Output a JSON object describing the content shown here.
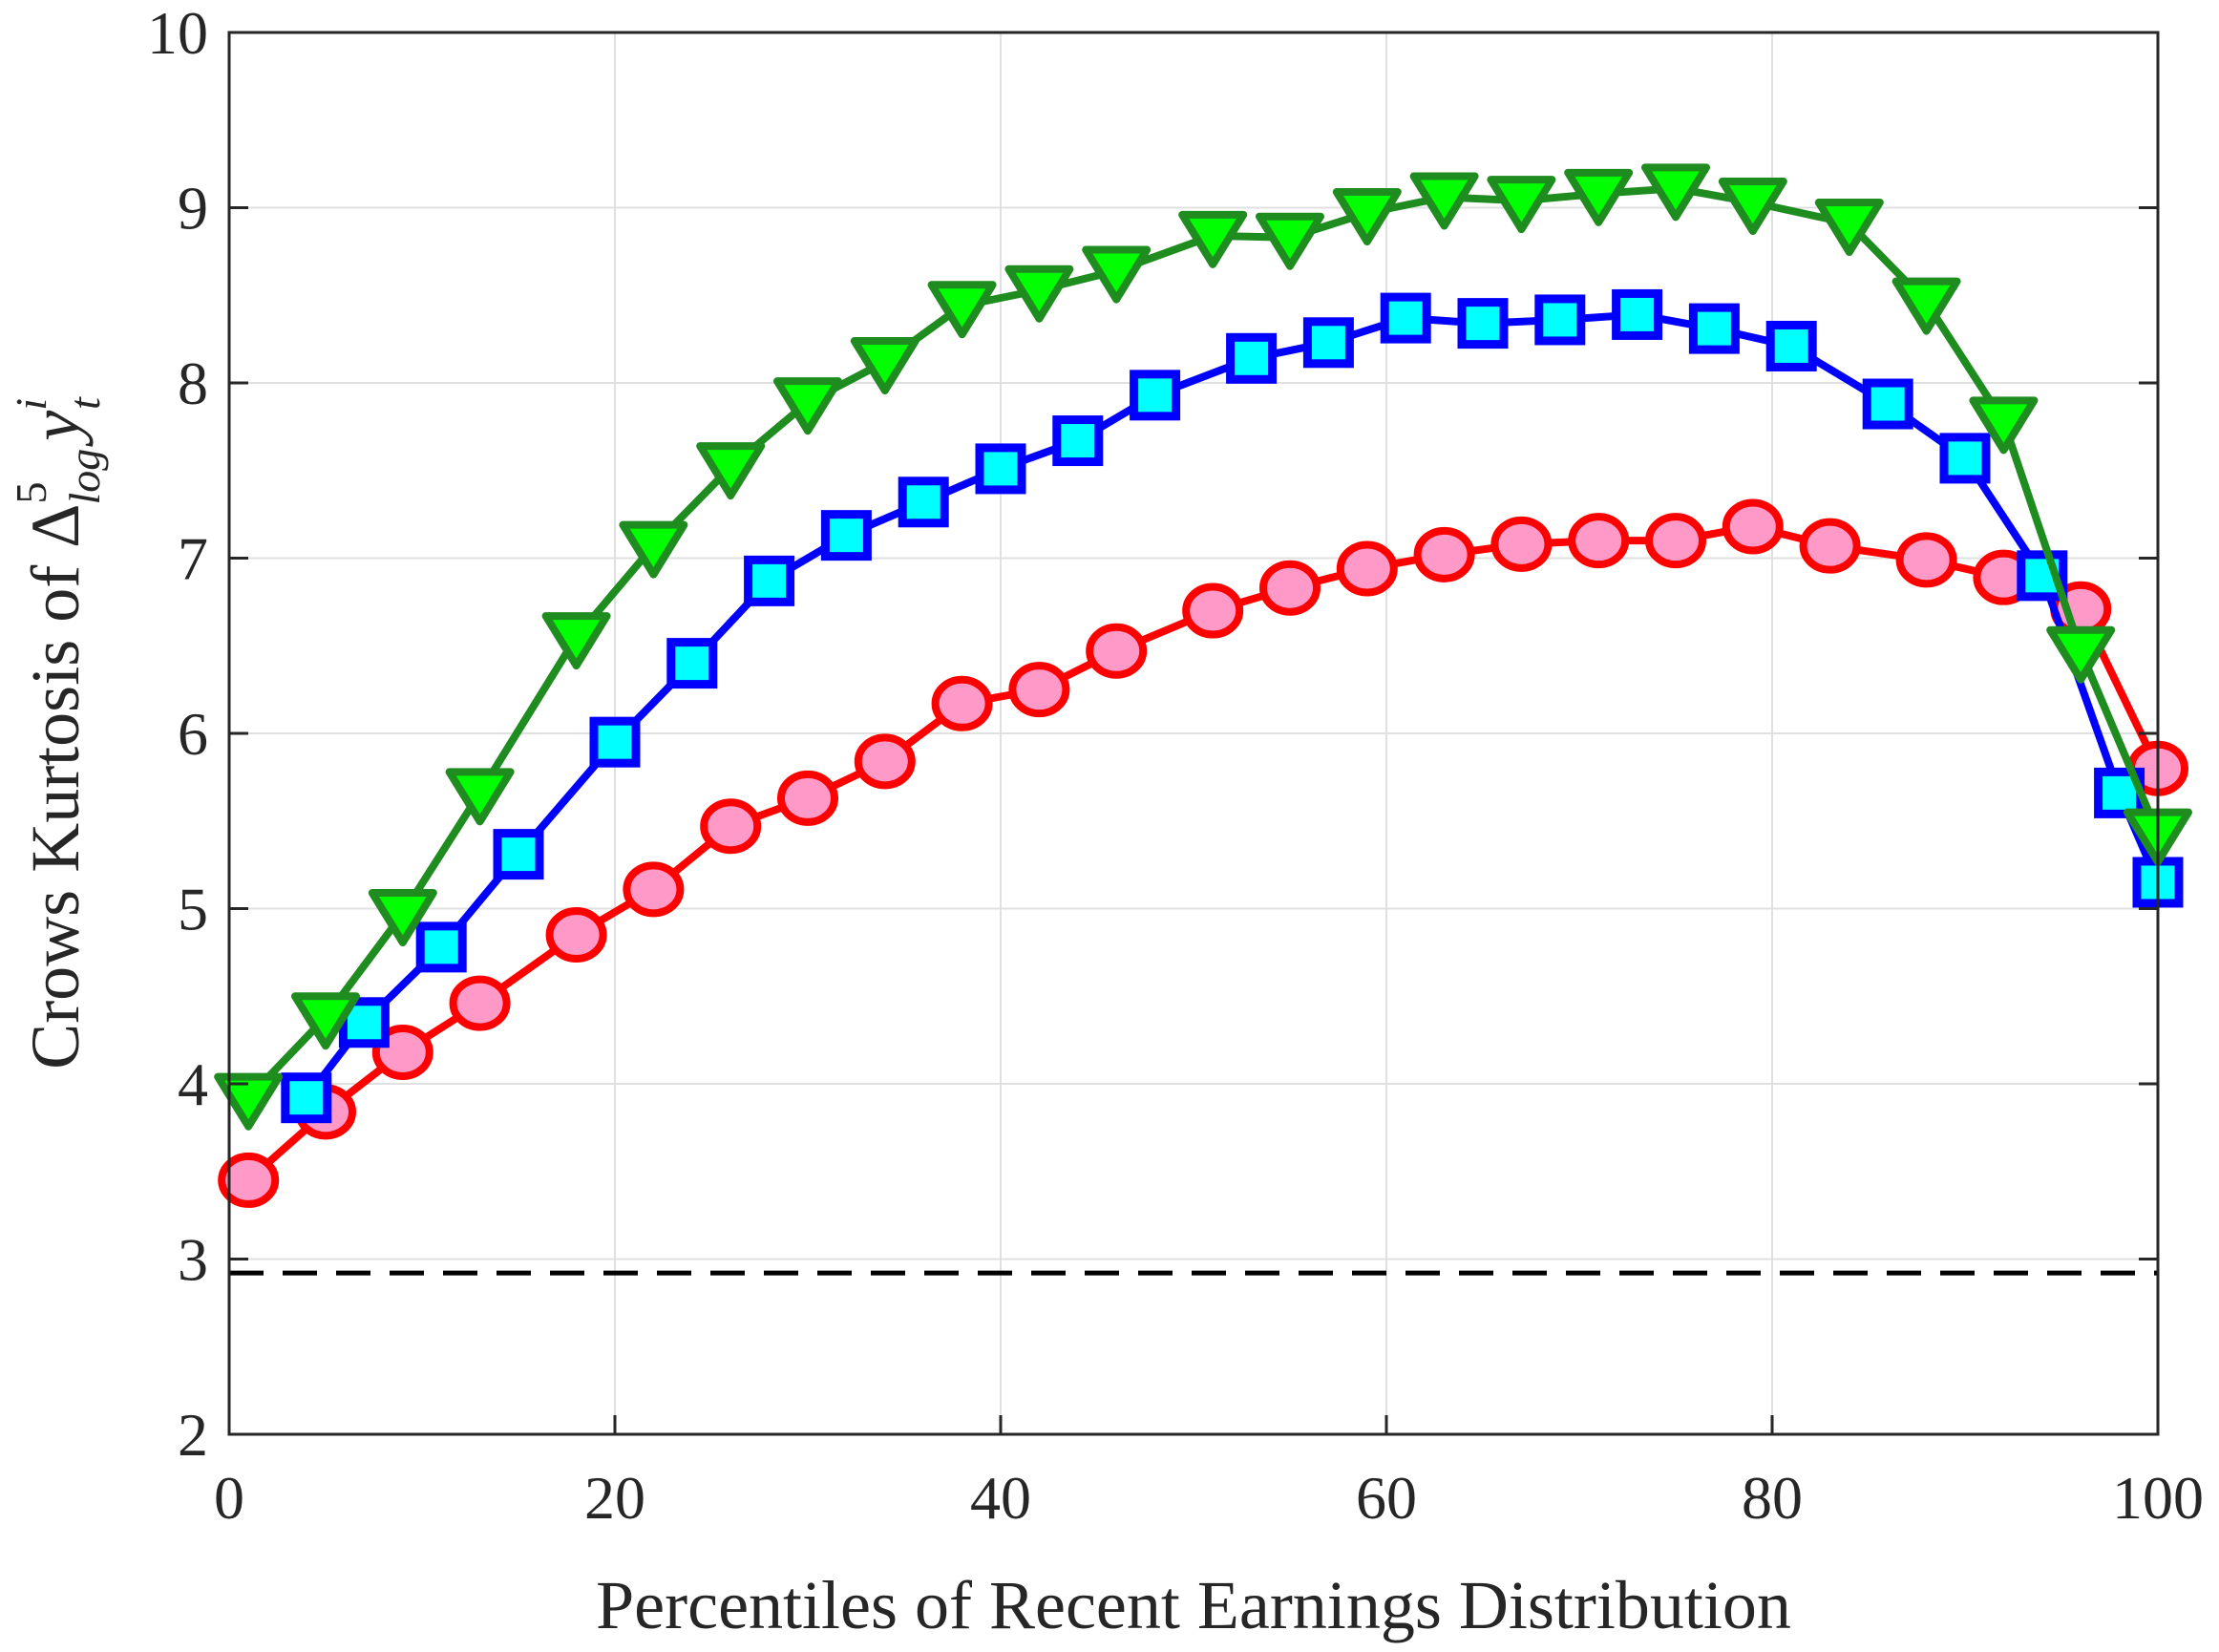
{
  "chart_data": {
    "type": "line",
    "title": "",
    "xlabel": "Percentiles of Recent Earnings Distribution",
    "ylabel_text": "Crows Kurtosis of ",
    "ylabel_math": {
      "symbol": "Δ",
      "sup": "5",
      "sub": "log",
      "var": "y",
      "var_sup": "i",
      "var_sub": "t"
    },
    "xlim": [
      0,
      100
    ],
    "ylim": [
      2,
      10
    ],
    "xticks": [
      0,
      20,
      40,
      60,
      80,
      100
    ],
    "yticks": [
      2,
      3,
      4,
      5,
      6,
      7,
      8,
      9,
      10
    ],
    "grid": true,
    "legend": null,
    "reference_line": {
      "y": 2.92,
      "style": "dashed",
      "color": "#000000"
    },
    "series": [
      {
        "name": "red-circles",
        "line_color": "#ff0000",
        "marker": "circle",
        "marker_fill": "#ff99c8",
        "marker_edge": "#ff0000",
        "x": [
          1,
          5,
          9,
          13,
          18,
          22,
          26,
          30,
          34,
          38,
          42,
          46,
          51,
          55,
          59,
          63,
          67,
          71,
          75,
          79,
          83,
          88,
          92,
          96,
          100
        ],
        "values": [
          3.45,
          3.84,
          4.18,
          4.46,
          4.85,
          5.11,
          5.47,
          5.63,
          5.84,
          6.17,
          6.25,
          6.47,
          6.7,
          6.83,
          6.94,
          7.02,
          7.08,
          7.1,
          7.1,
          7.18,
          7.07,
          6.99,
          6.89,
          6.71,
          5.8
        ]
      },
      {
        "name": "blue-squares",
        "line_color": "#0000ff",
        "marker": "square",
        "marker_fill": "#00ffff",
        "marker_edge": "#0000ff",
        "x": [
          4,
          7,
          11,
          15,
          20,
          24,
          28,
          32,
          36,
          40,
          44,
          48,
          53,
          57,
          61,
          65,
          69,
          73,
          77,
          81,
          86,
          90,
          94,
          98,
          100
        ],
        "values": [
          3.92,
          4.35,
          4.78,
          5.31,
          5.95,
          6.4,
          6.87,
          7.13,
          7.32,
          7.51,
          7.67,
          7.93,
          8.14,
          8.23,
          8.37,
          8.34,
          8.36,
          8.39,
          8.31,
          8.21,
          7.88,
          7.57,
          6.9,
          5.66,
          5.15
        ]
      },
      {
        "name": "green-triangles",
        "line_color": "#1e8c1e",
        "marker": "triangle-down",
        "marker_fill": "#00ff00",
        "marker_edge": "#1e8c1e",
        "x": [
          1,
          5,
          9,
          13,
          18,
          22,
          26,
          30,
          34,
          38,
          42,
          46,
          51,
          55,
          59,
          63,
          67,
          71,
          75,
          79,
          84,
          88,
          92,
          96,
          100
        ],
        "values": [
          3.92,
          4.38,
          4.97,
          5.66,
          6.55,
          7.07,
          7.52,
          7.89,
          8.12,
          8.44,
          8.53,
          8.64,
          8.84,
          8.83,
          8.97,
          9.06,
          9.04,
          9.08,
          9.11,
          9.03,
          8.91,
          8.46,
          7.78,
          6.47,
          5.43
        ]
      }
    ]
  }
}
